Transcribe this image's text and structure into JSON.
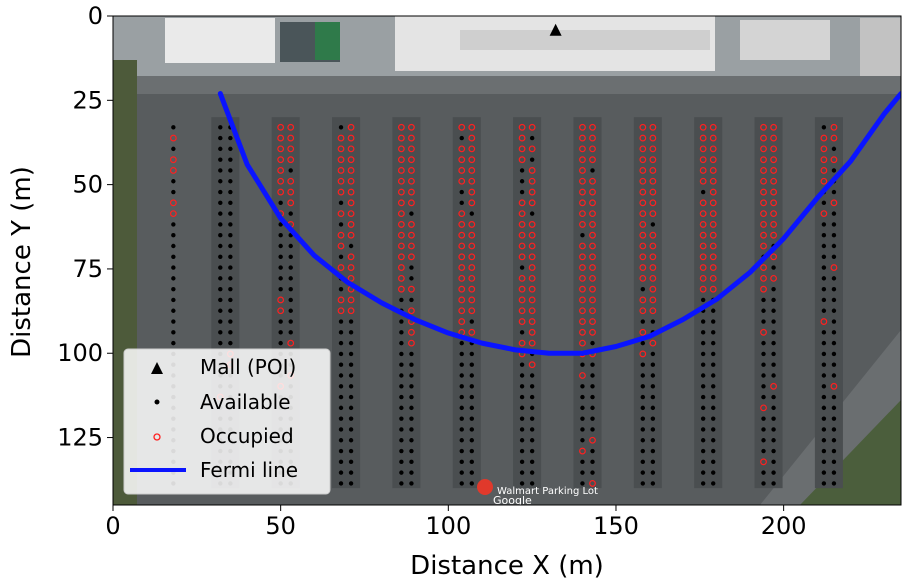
{
  "chart_data": {
    "type": "scatter",
    "xlabel": "Distance X (m)",
    "ylabel": "Distance Y (m)",
    "xlim": [
      0,
      235
    ],
    "ylim": [
      145,
      0
    ],
    "y_inverted": true,
    "x_ticks": [
      0,
      50,
      100,
      150,
      200
    ],
    "y_ticks": [
      0,
      25,
      50,
      75,
      100,
      125
    ],
    "grid": false,
    "legend_location": "lower-left",
    "background": "aerial photograph of a parking lot in front of a mall",
    "map_labels": [
      "Walmart Parking Lot",
      "Google"
    ],
    "poi": {
      "name": "Mall (POI)",
      "x": 132,
      "y": 2
    },
    "colors": {
      "available": "#000000",
      "occupied": "#ff2020",
      "fermi_line": "#0a14ff",
      "poi": "#000000"
    },
    "parking_columns_x": [
      18,
      32,
      35,
      50,
      53,
      68,
      71,
      86,
      89,
      104,
      107,
      122,
      125,
      140,
      143,
      158,
      161,
      176,
      179,
      194,
      197,
      212,
      215
    ],
    "parking_rows_y_range": [
      33,
      140
    ],
    "parking_spot_spacing": 3.2,
    "series": [
      {
        "name": "Available",
        "marker": "dot",
        "note": "unoccupied spots"
      },
      {
        "name": "Occupied",
        "marker": "hollow-circle",
        "note": "occupied spots concentrated near the mall"
      },
      {
        "name": "Fermi line",
        "type": "line",
        "x": [
          32,
          40,
          50,
          60,
          70,
          80,
          90,
          100,
          110,
          120,
          130,
          134,
          140,
          150,
          160,
          170,
          180,
          190,
          200,
          210,
          220,
          230,
          235
        ],
        "y": [
          23,
          44,
          60,
          71,
          79,
          85,
          90,
          94,
          97,
          99,
          100,
          100,
          100,
          98,
          95,
          90,
          84,
          76,
          66,
          54,
          43,
          29,
          23
        ]
      }
    ],
    "legend": [
      "Mall (POI)",
      "Available",
      "Occupied",
      "Fermi line"
    ]
  }
}
